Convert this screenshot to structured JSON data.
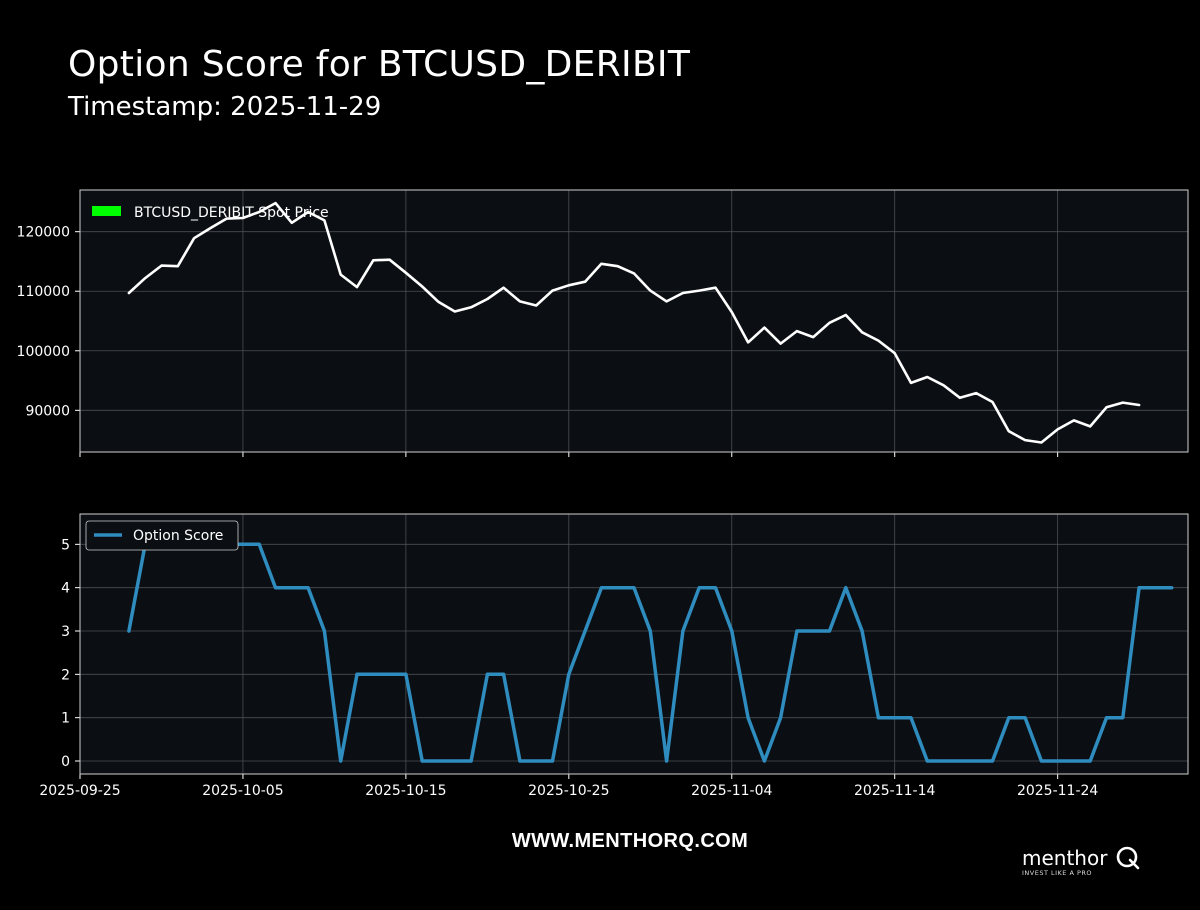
{
  "header": {
    "title": "Option Score for BTCUSD_DERIBIT",
    "subtitle": "Timestamp: 2025-11-29"
  },
  "footer": {
    "website": "WWW.MENTHORQ.COM",
    "brand": "menthor",
    "tagline": "INVEST LIKE A PRO"
  },
  "colors": {
    "background": "#000000",
    "plot_background": "#0b0f13",
    "price_line": "#ffffff",
    "price_legend_swatch": "#00ff00",
    "score_line": "#2f8cbf",
    "grid": "#4a4f55"
  },
  "chart_data": [
    {
      "type": "line",
      "name": "price-panel",
      "grid": true,
      "legend_position": "top-left",
      "ylim": [
        83000,
        127000
      ],
      "xlim": [
        "2025-09-25",
        "2025-12-02"
      ],
      "yticks": [
        90000,
        100000,
        110000,
        120000
      ],
      "series": [
        {
          "name": "BTCUSD_DERIBIT Spot Price",
          "start_date": "2025-09-28",
          "values": [
            109700,
            112200,
            114300,
            114200,
            118900,
            120600,
            122200,
            122300,
            123300,
            124800,
            121500,
            123300,
            121900,
            112800,
            110700,
            115200,
            115300,
            113100,
            110800,
            108200,
            106600,
            107300,
            108700,
            110600,
            108300,
            107600,
            110100,
            111000,
            111600,
            114600,
            114200,
            113000,
            110100,
            108300,
            109700,
            110100,
            110600,
            106500,
            101400,
            103900,
            101200,
            103300,
            102300,
            104700,
            106000,
            103100,
            101700,
            99600,
            94600,
            95600,
            94200,
            92100,
            92900,
            91400,
            86500,
            85000,
            84600,
            86800,
            88300,
            87300,
            90500,
            91300,
            90900
          ]
        }
      ]
    },
    {
      "type": "line",
      "name": "score-panel",
      "grid": true,
      "legend_position": "top-left",
      "ylim": [
        -0.3,
        5.7
      ],
      "xlim": [
        "2025-09-25",
        "2025-12-02"
      ],
      "yticks": [
        0,
        1,
        2,
        3,
        4,
        5
      ],
      "xticks": [
        "2025-09-25",
        "2025-10-05",
        "2025-10-15",
        "2025-10-25",
        "2025-11-04",
        "2025-11-14",
        "2025-11-24"
      ],
      "series": [
        {
          "name": "Option Score",
          "start_date": "2025-09-28",
          "values": [
            3,
            5,
            5,
            5,
            5,
            5,
            5,
            5,
            5,
            4,
            4,
            4,
            3,
            0,
            2,
            2,
            2,
            2,
            0,
            0,
            0,
            0,
            2,
            2,
            0,
            0,
            0,
            2,
            3,
            4,
            4,
            4,
            3,
            0,
            3,
            4,
            4,
            3,
            1,
            0,
            1,
            3,
            3,
            3,
            4,
            3,
            1,
            1,
            1,
            0,
            0,
            0,
            0,
            0,
            1,
            1,
            0,
            0,
            0,
            0,
            1,
            1,
            4,
            4,
            4
          ]
        }
      ]
    }
  ]
}
